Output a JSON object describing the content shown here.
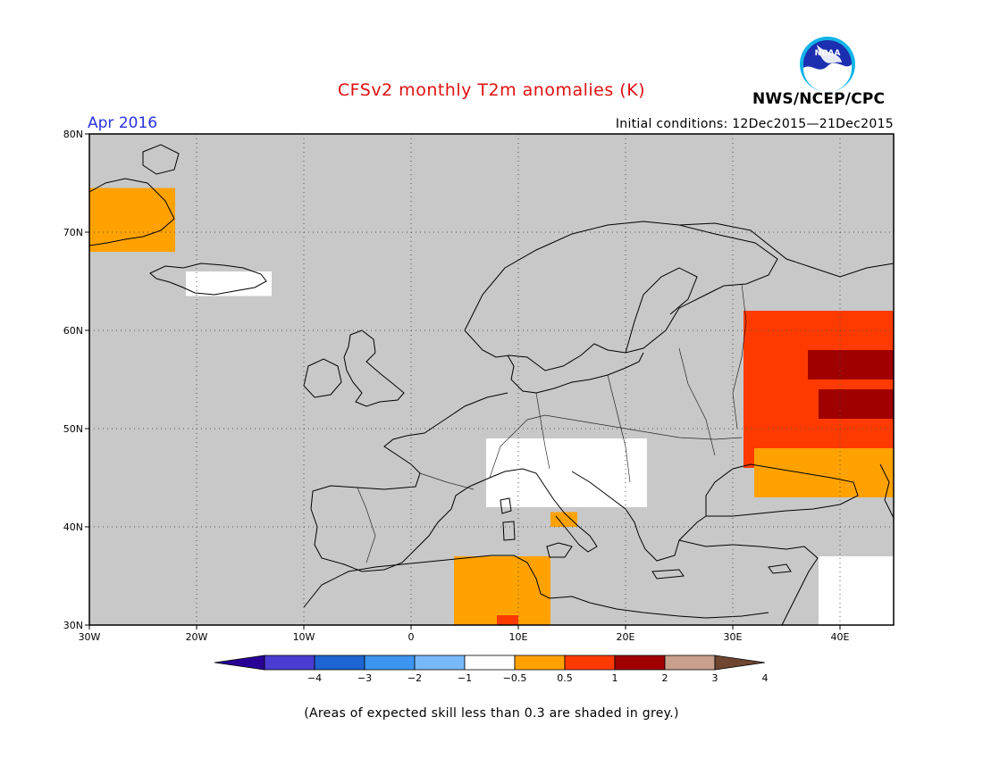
{
  "header": {
    "title": "CFSv2 monthly T2m anomalies (K)",
    "month": "Apr 2016",
    "initial_conditions": "Initial conditions: 12Dec2015—21Dec2015",
    "organization": "NWS/NCEP/CPC",
    "logo_text": "NOAA",
    "logo_icon": "noaa-logo-icon"
  },
  "map": {
    "lon_range": [
      -30,
      45
    ],
    "lat_range": [
      30,
      80
    ],
    "lat_ticks": [
      {
        "value": 80,
        "label": "80N"
      },
      {
        "value": 70,
        "label": "70N"
      },
      {
        "value": 60,
        "label": "60N"
      },
      {
        "value": 50,
        "label": "50N"
      },
      {
        "value": 40,
        "label": "40N"
      },
      {
        "value": 30,
        "label": "30N"
      }
    ],
    "lon_ticks": [
      {
        "value": -30,
        "label": "30W"
      },
      {
        "value": -20,
        "label": "20W"
      },
      {
        "value": -10,
        "label": "10W"
      },
      {
        "value": 0,
        "label": "0"
      },
      {
        "value": 10,
        "label": "10E"
      },
      {
        "value": 20,
        "label": "20E"
      },
      {
        "value": 30,
        "label": "30E"
      },
      {
        "value": 40,
        "label": "40E"
      }
    ],
    "grid": true,
    "grey_color": "#c8c8c8",
    "anomaly_regions": [
      {
        "name": "east-greenland",
        "level": "0.5-1",
        "color": "#ffa200",
        "lon": [
          -30,
          -22
        ],
        "lat": [
          68,
          74.5
        ]
      },
      {
        "name": "iceland",
        "level": "-0.5-0.5",
        "color": "#ffffff",
        "lon": [
          -21,
          -13
        ],
        "lat": [
          63.5,
          66
        ]
      },
      {
        "name": "western-russia",
        "level": "1-2",
        "color": "#ff3a00",
        "lon": [
          31,
          45
        ],
        "lat": [
          46,
          62
        ]
      },
      {
        "name": "central-russia-1",
        "level": "2-3",
        "color": "#a00000",
        "lon": [
          37,
          45
        ],
        "lat": [
          55,
          58
        ]
      },
      {
        "name": "central-russia-2",
        "level": "2-3",
        "color": "#a00000",
        "lon": [
          38,
          45
        ],
        "lat": [
          51,
          54
        ]
      },
      {
        "name": "ukraine",
        "level": "0.5-1",
        "color": "#ffa200",
        "lon": [
          32,
          45
        ],
        "lat": [
          43,
          48
        ]
      },
      {
        "name": "central-europe",
        "level": "-0.5-0.5",
        "color": "#ffffff",
        "lon": [
          7,
          22
        ],
        "lat": [
          42,
          49
        ]
      },
      {
        "name": "italy-south",
        "level": "0.5-1",
        "color": "#ffa200",
        "lon": [
          13,
          15.5
        ],
        "lat": [
          40,
          41.5
        ]
      },
      {
        "name": "tunisia",
        "level": "0.5-1",
        "color": "#ffa200",
        "lon": [
          4,
          13
        ],
        "lat": [
          30,
          37
        ]
      },
      {
        "name": "tunisia-south",
        "level": "1-2",
        "color": "#ff3a00",
        "lon": [
          8,
          10
        ],
        "lat": [
          30,
          31
        ]
      },
      {
        "name": "middle-east",
        "level": "-0.5-0.5",
        "color": "#ffffff",
        "lon": [
          38,
          45
        ],
        "lat": [
          30,
          37
        ]
      }
    ]
  },
  "colorbar": {
    "segments": [
      {
        "color": "#280096"
      },
      {
        "color": "#4b3cd2"
      },
      {
        "color": "#1e64d2"
      },
      {
        "color": "#3c96f0"
      },
      {
        "color": "#78b9fa"
      },
      {
        "color": "#ffffff"
      },
      {
        "color": "#ffa200"
      },
      {
        "color": "#ff3a00"
      },
      {
        "color": "#a00000"
      },
      {
        "color": "#c8a08c"
      },
      {
        "color": "#6e4632"
      }
    ],
    "labels": [
      "−4",
      "−3",
      "−2",
      "−1",
      "−0.5",
      "0.5",
      "1",
      "2",
      "3",
      "4"
    ]
  },
  "footnote": "(Areas of expected skill less than 0.3 are shaded in grey.)"
}
